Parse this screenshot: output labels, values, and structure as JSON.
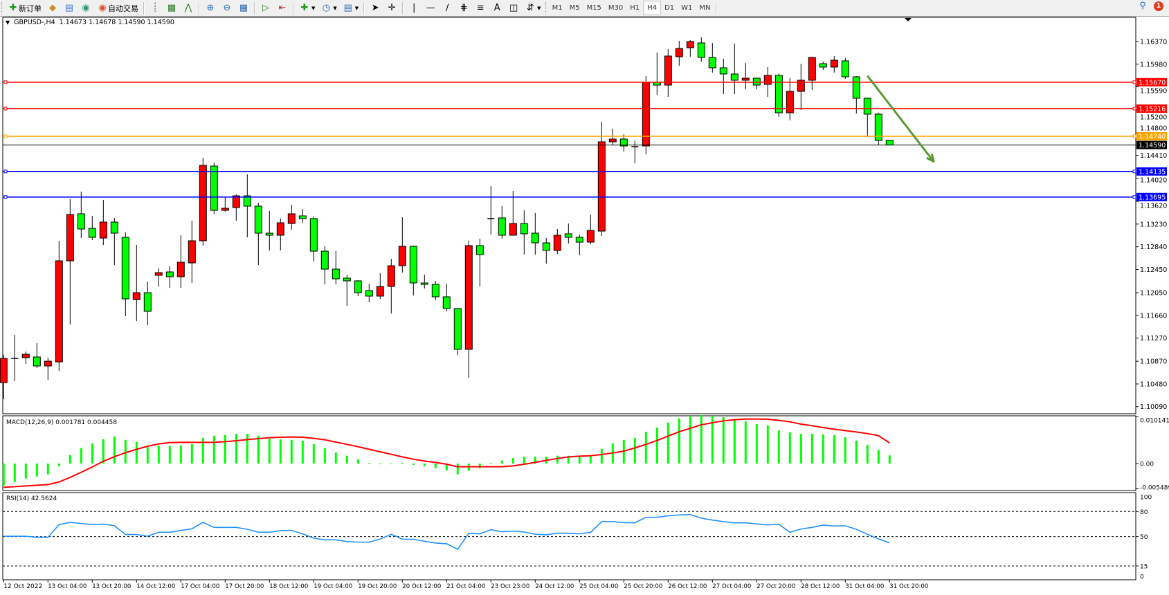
{
  "toolbar": {
    "new_order_label": "新订单",
    "auto_trading_label": "自动交易",
    "timeframes": [
      "M1",
      "M5",
      "M15",
      "M30",
      "H1",
      "H4",
      "D1",
      "W1",
      "MN"
    ],
    "active_timeframe": "H4",
    "notification_count": "1",
    "icons": [
      "new-order-icon",
      "navigator-icon",
      "terminal-icon",
      "signals-icon",
      "auto-trading-icon",
      "bar-chart-icon",
      "candlestick-icon",
      "line-chart-icon",
      "zoom-in-icon",
      "zoom-out-icon",
      "tile-windows-icon",
      "autoscroll-icon",
      "chart-shift-icon",
      "indicators-icon",
      "periods-icon",
      "templates-icon",
      "cursor-icon",
      "crosshair-icon",
      "vertical-line-icon",
      "horizontal-line-icon",
      "trendline-icon",
      "equidistant-channel-icon",
      "fibonacci-icon",
      "text-icon",
      "text-label-icon",
      "arrows-icon",
      "search-icon",
      "notification-icon"
    ]
  },
  "chart_header": {
    "symbol": "GBPUSD-,H4",
    "values": "1.14673 1.14678 1.14590 1.14590"
  },
  "chart_data": [
    {
      "type": "candlestick",
      "title": "GBPUSD-,H4",
      "up_color": "#ff0000",
      "down_color": "#00ff00",
      "ylim": [
        1.1009,
        1.1637
      ],
      "price_ticks": [
        "1.16370",
        "1.15980",
        "1.15590",
        "1.15200",
        "1.14800",
        "1.14410",
        "1.14020",
        "1.13620",
        "1.13230",
        "1.12840",
        "1.12450",
        "1.12050",
        "1.11660",
        "1.11270",
        "1.10870",
        "1.10480",
        "1.10090"
      ],
      "time_labels": [
        "12 Oct 2022",
        "13 Oct 04:00",
        "13 Oct 20:00",
        "14 Oct 12:00",
        "17 Oct 04:00",
        "17 Oct 20:00",
        "18 Oct 12:00",
        "19 Oct 04:00",
        "19 Oct 20:00",
        "20 Oct 12:00",
        "21 Oct 04:00",
        "23 Oct 23:00",
        "24 Oct 12:00",
        "25 Oct 04:00",
        "25 Oct 20:00",
        "26 Oct 12:00",
        "27 Oct 04:00",
        "27 Oct 20:00",
        "28 Oct 12:00",
        "31 Oct 04:00",
        "31 Oct 20:00"
      ],
      "ohlc": [
        [
          1.10503,
          1.10979,
          1.10218,
          1.1092
        ],
        [
          1.1092,
          1.11324,
          1.10527,
          1.1092
        ],
        [
          1.10932,
          1.11039,
          1.10825,
          1.10991
        ],
        [
          1.10944,
          1.11182,
          1.10753,
          1.10789
        ],
        [
          1.10789,
          1.10932,
          1.10551,
          1.10872
        ],
        [
          1.1086,
          1.12943,
          1.10706,
          1.12598
        ],
        [
          1.12598,
          1.13657,
          1.11503,
          1.13395
        ],
        [
          1.13407,
          1.13788,
          1.1299,
          1.13145
        ],
        [
          1.13157,
          1.13371,
          1.12955,
          1.13002
        ],
        [
          1.1299,
          1.13645,
          1.12871,
          1.13264
        ],
        [
          1.13264,
          1.13336,
          1.12526,
          1.13074
        ],
        [
          1.13002,
          1.13086,
          1.11646,
          1.11943
        ],
        [
          1.11931,
          1.12871,
          1.11562,
          1.1205
        ],
        [
          1.1205,
          1.12241,
          1.11491,
          1.11729
        ],
        [
          1.12348,
          1.12467,
          1.12157,
          1.12395
        ],
        [
          1.12407,
          1.12503,
          1.12134,
          1.12324
        ],
        [
          1.12324,
          1.13038,
          1.12134,
          1.12574
        ],
        [
          1.12562,
          1.13288,
          1.12217,
          1.12943
        ],
        [
          1.12943,
          1.14371,
          1.1286,
          1.1424
        ],
        [
          1.14228,
          1.14288,
          1.13407,
          1.13466
        ],
        [
          1.13466,
          1.13693,
          1.13443,
          1.13502
        ],
        [
          1.13514,
          1.1374,
          1.13288,
          1.13716
        ],
        [
          1.13716,
          1.14085,
          1.13002,
          1.13538
        ],
        [
          1.13538,
          1.13597,
          1.12526,
          1.13074
        ],
        [
          1.13074,
          1.13455,
          1.12776,
          1.13038
        ],
        [
          1.13038,
          1.13324,
          1.12776,
          1.13252
        ],
        [
          1.1324,
          1.13562,
          1.13133,
          1.13407
        ],
        [
          1.13371,
          1.1349,
          1.13252,
          1.13324
        ],
        [
          1.13324,
          1.13359,
          1.12586,
          1.12764
        ],
        [
          1.12764,
          1.12848,
          1.12193,
          1.12455
        ],
        [
          1.12455,
          1.12764,
          1.12193,
          1.12288
        ],
        [
          1.123,
          1.1236,
          1.11824,
          1.12253
        ],
        [
          1.12253,
          1.12265,
          1.11991,
          1.1205
        ],
        [
          1.12086,
          1.12205,
          1.11884,
          1.11991
        ],
        [
          1.11991,
          1.12384,
          1.11943,
          1.12157
        ],
        [
          1.12157,
          1.12633,
          1.11693,
          1.12514
        ],
        [
          1.12514,
          1.13347,
          1.12395,
          1.12848
        ],
        [
          1.12848,
          1.1286,
          1.12003,
          1.12217
        ],
        [
          1.12217,
          1.1236,
          1.12122,
          1.12193
        ],
        [
          1.12193,
          1.12253,
          1.11919,
          1.11979
        ],
        [
          1.11979,
          1.12205,
          1.11729,
          1.11777
        ],
        [
          1.11777,
          1.11789,
          1.10979,
          1.11075
        ],
        [
          1.11075,
          1.12943,
          1.10587,
          1.1286
        ],
        [
          1.1286,
          1.12979,
          1.12157,
          1.12705
        ],
        [
          1.13324,
          1.13883,
          1.1305,
          1.13324
        ],
        [
          1.13336,
          1.13538,
          1.12979,
          1.13038
        ],
        [
          1.13038,
          1.138,
          1.13038,
          1.1324
        ],
        [
          1.1324,
          1.13466,
          1.12705,
          1.13062
        ],
        [
          1.13074,
          1.13419,
          1.12705,
          1.12907
        ],
        [
          1.12907,
          1.1299,
          1.1255,
          1.12776
        ],
        [
          1.12776,
          1.13145,
          1.12717,
          1.13038
        ],
        [
          1.13062,
          1.1324,
          1.12895,
          1.13002
        ],
        [
          1.13002,
          1.1305,
          1.12693,
          1.12919
        ],
        [
          1.12919,
          1.13395,
          1.12883,
          1.13121
        ],
        [
          1.13109,
          1.1499,
          1.13026,
          1.14645
        ],
        [
          1.14645,
          1.14871,
          1.14585,
          1.14692
        ],
        [
          1.14692,
          1.14775,
          1.14478,
          1.14573
        ],
        [
          1.14561,
          1.14668,
          1.14276,
          1.14561
        ],
        [
          1.14573,
          1.15775,
          1.1443,
          1.15668
        ],
        [
          1.15668,
          1.1618,
          1.15454,
          1.1562
        ],
        [
          1.1562,
          1.16239,
          1.15418,
          1.1612
        ],
        [
          1.16108,
          1.16382,
          1.15954,
          1.16251
        ],
        [
          1.16263,
          1.16394,
          1.16108,
          1.1637
        ],
        [
          1.16346,
          1.16441,
          1.16025,
          1.16096
        ],
        [
          1.16096,
          1.16346,
          1.15835,
          1.15918
        ],
        [
          1.15918,
          1.16073,
          1.15466,
          1.15811
        ],
        [
          1.15811,
          1.16334,
          1.15466,
          1.15704
        ],
        [
          1.15704,
          1.16001,
          1.15549,
          1.15739
        ],
        [
          1.15739,
          1.15751,
          1.15549,
          1.1562
        ],
        [
          1.15632,
          1.1593,
          1.15418,
          1.15787
        ],
        [
          1.15787,
          1.15823,
          1.15073,
          1.15144
        ],
        [
          1.15144,
          1.15739,
          1.15013,
          1.15513
        ],
        [
          1.15513,
          1.15989,
          1.15192,
          1.15704
        ],
        [
          1.15704,
          1.16108,
          1.15537,
          1.16096
        ],
        [
          1.15989,
          1.16025,
          1.15882,
          1.1593
        ],
        [
          1.1593,
          1.1612,
          1.15835,
          1.16049
        ],
        [
          1.16037,
          1.16084,
          1.15727,
          1.15763
        ],
        [
          1.15763,
          1.15775,
          1.15132,
          1.15394
        ],
        [
          1.15394,
          1.15406,
          1.14752,
          1.15121
        ],
        [
          1.15121,
          1.15144,
          1.14585,
          1.14668
        ],
        [
          1.14673,
          1.14678,
          1.1459,
          1.1459
        ]
      ],
      "last_price": {
        "value": "1.14590",
        "color": "#000000"
      },
      "levels": [
        {
          "value": "1.15670",
          "color": "#ff0000"
        },
        {
          "value": "1.15216",
          "color": "#ff0000"
        },
        {
          "value": "1.14740",
          "color": "#ffa500"
        },
        {
          "value": "1.14135",
          "color": "#0000ff"
        },
        {
          "value": "1.13695",
          "color": "#0000ff"
        }
      ],
      "trend_arrow": {
        "from": {
          "bar": 78,
          "price": 1.1578
        },
        "to": {
          "bar": 84,
          "price": 1.143
        },
        "color": "#5a9a32",
        "direction": "down"
      }
    },
    {
      "type": "bar+line",
      "title": "MACD(12,26,9) 0.001781 0.004458",
      "ylim": [
        -0.005489,
        0.010141
      ],
      "axis_labels": [
        "0.010141",
        "0.00",
        "-0.005489"
      ],
      "histogram_color": "#00ff00",
      "signal_color": "#ff0000",
      "histogram": [
        -0.00476,
        -0.00401,
        -0.00326,
        -0.00281,
        -0.00235,
        -0.0006,
        0.00185,
        0.00336,
        0.00436,
        0.00526,
        0.00586,
        0.00511,
        0.00471,
        0.00356,
        0.00391,
        0.00381,
        0.00391,
        0.00421,
        0.00556,
        0.00606,
        0.00621,
        0.00646,
        0.00646,
        0.00606,
        0.00541,
        0.00526,
        0.00511,
        0.00496,
        0.00421,
        0.00336,
        0.0024,
        0.0017,
        0.0009,
        0.00015,
        -0.0001,
        -0.00015,
        0.0002,
        -0.0003,
        -0.0006,
        -0.001,
        -0.0015,
        -0.00235,
        -0.0016,
        -0.001,
        0.00015,
        0.00065,
        0.0012,
        0.0015,
        0.0015,
        0.0015,
        0.0017,
        0.0017,
        0.0017,
        0.00185,
        0.0032,
        0.00436,
        0.00511,
        0.00556,
        0.00691,
        0.00781,
        0.00892,
        0.00977,
        0.01037,
        0.01052,
        0.01037,
        0.01007,
        0.00962,
        0.00917,
        0.00857,
        0.00827,
        0.00721,
        0.00676,
        0.00646,
        0.00646,
        0.00631,
        0.00616,
        0.00571,
        0.00496,
        0.00406,
        0.003,
        0.001781
      ],
      "signal": [
        -0.00516,
        -0.00501,
        -0.00486,
        -0.00471,
        -0.00456,
        -0.004,
        -0.003,
        -0.0019,
        -0.00075,
        0.0005,
        0.0015,
        0.00235,
        0.0031,
        0.00376,
        0.00426,
        0.00456,
        0.0046,
        0.0046,
        0.0046,
        0.0046,
        0.00476,
        0.00496,
        0.00521,
        0.00541,
        0.00561,
        0.00571,
        0.00576,
        0.00571,
        0.00546,
        0.00516,
        0.00466,
        0.00416,
        0.00366,
        0.0031,
        0.00255,
        0.002,
        0.00145,
        0.00095,
        0.00055,
        0.00025,
        -0.00015,
        -0.0007,
        -0.0007,
        -0.0007,
        -0.0007,
        -0.0007,
        -0.0005,
        -0.00015,
        0.00025,
        0.0007,
        0.0011,
        0.00145,
        0.0016,
        0.0017,
        0.00195,
        0.0023,
        0.0027,
        0.0034,
        0.00416,
        0.005,
        0.00596,
        0.00691,
        0.00766,
        0.00842,
        0.00887,
        0.00927,
        0.00952,
        0.00967,
        0.00967,
        0.00962,
        0.00937,
        0.00907,
        0.00857,
        0.00822,
        0.00782,
        0.00746,
        0.00716,
        0.00686,
        0.00651,
        0.00606,
        0.004458
      ]
    },
    {
      "type": "line",
      "title": "RSI(14) 42.5624",
      "ylim": [
        0,
        100
      ],
      "axis_labels": [
        "100",
        "80",
        "50",
        "15",
        "0"
      ],
      "levels": [
        80,
        50,
        15
      ],
      "color": "#1e90ff",
      "values": [
        50.5,
        50.5,
        50.5,
        49.2,
        49.2,
        64.3,
        67,
        65.7,
        64.3,
        64.9,
        63,
        52.5,
        52.5,
        50.5,
        55.2,
        55.2,
        57.4,
        59.4,
        67,
        61,
        61,
        61,
        58.8,
        55.2,
        55.2,
        57.2,
        57.4,
        53.3,
        48.3,
        46.1,
        46.1,
        44.2,
        43.4,
        43.4,
        47,
        52.8,
        47,
        46.8,
        44.5,
        42.3,
        41.5,
        34.9,
        54.1,
        53.3,
        58.3,
        55.8,
        56.6,
        55.5,
        52.8,
        52.2,
        54.1,
        54.1,
        53.3,
        55,
        67.9,
        67.9,
        66.8,
        66.5,
        73.1,
        73.1,
        74.8,
        75.9,
        76.4,
        72,
        69.8,
        67.9,
        66.5,
        66.5,
        65.1,
        64,
        64.9,
        55.2,
        59.1,
        61,
        63.8,
        62.7,
        62.9,
        58.8,
        52.8,
        47.2,
        42.5624
      ]
    }
  ]
}
